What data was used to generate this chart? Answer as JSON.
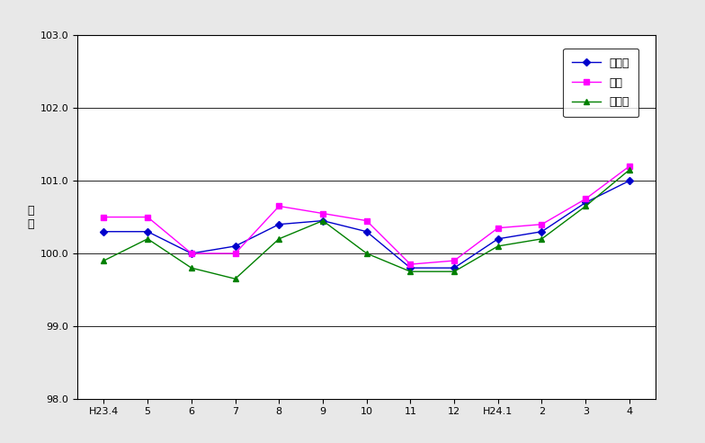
{
  "x_labels": [
    "H23.4",
    "5",
    "6",
    "7",
    "8",
    "9",
    "10",
    "11",
    "12",
    "H24.1",
    "2",
    "3",
    "4"
  ],
  "mie_ken": [
    100.3,
    100.3,
    100.0,
    100.1,
    100.4,
    100.45,
    100.3,
    99.8,
    99.8,
    100.2,
    100.3,
    100.7,
    101.0
  ],
  "tsu_shi": [
    100.5,
    100.5,
    100.0,
    100.0,
    100.65,
    100.55,
    100.45,
    99.85,
    99.9,
    100.35,
    100.4,
    100.75,
    101.2
  ],
  "matsusaka_shi": [
    99.9,
    100.2,
    99.8,
    99.65,
    100.2,
    100.45,
    100.0,
    99.75,
    99.75,
    100.1,
    100.2,
    100.65,
    101.15
  ],
  "mie_color": "#0000CC",
  "tsu_color": "#FF00FF",
  "matsusaka_color": "#008000",
  "ylabel": "指\n数",
  "ylim_min": 98.0,
  "ylim_max": 103.0,
  "yticks": [
    98.0,
    99.0,
    100.0,
    101.0,
    102.0,
    103.0
  ],
  "legend_labels": [
    "三重県",
    "津市",
    "松阪市"
  ],
  "bg_color": "#FFFFFF",
  "outer_bg": "#E8E8E8"
}
